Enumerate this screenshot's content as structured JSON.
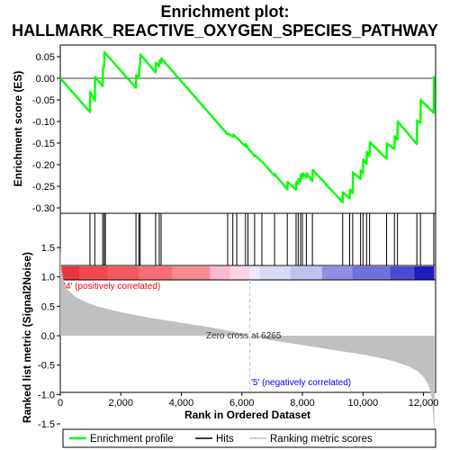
{
  "chart_data": {
    "type": "line",
    "title_line1": "Enrichment plot:",
    "title_line2": "HALLMARK_REACTIVE_OXYGEN_SPECIES_PATHWAY",
    "es_ylabel": "Enrichment score (ES)",
    "metric_ylabel": "Ranked list metric (Signal2Noise)",
    "xlabel": "Rank in Ordered Dataset",
    "xlim": [
      0,
      12400
    ],
    "x_ticks": [
      0,
      2000,
      4000,
      6000,
      8000,
      10000,
      12000
    ],
    "x_tick_labels": [
      "0",
      "2,000",
      "4,000",
      "6,000",
      "8,000",
      "10,000",
      "12,000"
    ],
    "es_ylim": [
      -0.3,
      0.07
    ],
    "es_ticks": [
      0.05,
      0.0,
      -0.05,
      -0.1,
      -0.15,
      -0.2,
      -0.25,
      -0.3
    ],
    "es_tick_labels": [
      "0.05",
      "0.00",
      "-0.05",
      "-0.10",
      "-0.15",
      "-0.20",
      "-0.25",
      "-0.30"
    ],
    "metric_ylim": [
      -1.75,
      1.75
    ],
    "metric_ticks": [
      1.5,
      1.0,
      0.5,
      0.0,
      -0.5,
      -1.0,
      -1.5
    ],
    "metric_tick_labels": [
      "1.5",
      "1.0",
      "0.5",
      "0.0",
      "-0.5",
      "-1.0",
      "-1.5"
    ],
    "series": [
      {
        "name": "Enrichment profile",
        "color": "#00ff00",
        "x": [
          0,
          980,
          990,
          1140,
          1150,
          1400,
          1410,
          1450,
          1460,
          1490,
          2500,
          2510,
          2600,
          2610,
          2640,
          2650,
          3150,
          3160,
          3270,
          3280,
          3330,
          3340,
          5530,
          5540,
          5700,
          5710,
          5830,
          5840,
          6120,
          6130,
          6200,
          6210,
          6420,
          6430,
          6660,
          6670,
          7080,
          7090,
          7500,
          7510,
          7790,
          7800,
          7860,
          7870,
          7940,
          7950,
          8000,
          8010,
          8130,
          8140,
          8330,
          8340,
          9330,
          9340,
          9560,
          9570,
          9660,
          9670,
          9920,
          9930,
          10000,
          10010,
          10120,
          10130,
          10220,
          10230,
          10780,
          10790,
          11040,
          11050,
          11140,
          11150,
          11780,
          11790,
          11900,
          11910,
          12340,
          12350,
          12360
        ],
        "y": [
          0.0,
          -0.078,
          -0.031,
          -0.052,
          0.003,
          -0.018,
          0.022,
          0.028,
          0.06,
          0.058,
          -0.022,
          0.008,
          0.001,
          0.024,
          0.031,
          0.055,
          0.014,
          0.036,
          0.027,
          0.041,
          0.036,
          0.046,
          -0.13,
          -0.128,
          -0.135,
          -0.13,
          -0.138,
          -0.138,
          -0.158,
          -0.152,
          -0.162,
          -0.163,
          -0.18,
          -0.178,
          -0.193,
          -0.193,
          -0.226,
          -0.222,
          -0.257,
          -0.24,
          -0.258,
          -0.24,
          -0.245,
          -0.233,
          -0.238,
          -0.223,
          -0.23,
          -0.22,
          -0.23,
          -0.22,
          -0.238,
          -0.212,
          -0.287,
          -0.264,
          -0.278,
          -0.258,
          -0.266,
          -0.218,
          -0.233,
          -0.213,
          -0.22,
          -0.188,
          -0.198,
          -0.17,
          -0.18,
          -0.148,
          -0.186,
          -0.151,
          -0.164,
          -0.134,
          -0.142,
          -0.1,
          -0.152,
          -0.098,
          -0.103,
          -0.05,
          -0.08,
          0.003,
          0.003
        ]
      },
      {
        "name": "Hits",
        "color": "#000000",
        "positions": [
          980,
          1140,
          1400,
          1450,
          1490,
          2500,
          2600,
          2640,
          3150,
          3270,
          3330,
          5530,
          5700,
          5830,
          6120,
          6200,
          6420,
          6660,
          7080,
          7500,
          7790,
          7860,
          7940,
          8000,
          8130,
          8330,
          9330,
          9560,
          9660,
          9920,
          10000,
          10120,
          10220,
          10780,
          11040,
          11140,
          11780,
          11900,
          12340
        ]
      },
      {
        "name": "Ranking metric scores",
        "color": "#c0c0c0",
        "x": [
          0,
          30,
          100,
          250,
          500,
          800,
          1200,
          2000,
          3000,
          4000,
          5000,
          6000,
          6265,
          7000,
          8000,
          9000,
          10000,
          10500,
          11000,
          11500,
          11800,
          12000,
          12150,
          12250,
          12300,
          12340,
          12360
        ],
        "y": [
          1.5,
          1.18,
          0.95,
          0.78,
          0.66,
          0.58,
          0.5,
          0.4,
          0.3,
          0.22,
          0.14,
          0.04,
          0.0,
          -0.08,
          -0.16,
          -0.24,
          -0.32,
          -0.37,
          -0.43,
          -0.52,
          -0.6,
          -0.7,
          -0.82,
          -0.98,
          -1.2,
          -1.5,
          -1.62
        ]
      }
    ],
    "annotations": {
      "pos_label": "'4' (positively correlated)",
      "neg_label": "'5' (negatively correlated)",
      "zero_cross": "Zero cross at 6265",
      "zero_cross_x": 6265
    },
    "legend": [
      "Enrichment profile",
      "Hits",
      "Ranking metric scores"
    ],
    "colors": {
      "es_line": "#00ff00",
      "pos_label": "#ff0000",
      "neg_label": "#0000ff",
      "metric_fill": "#c0c0c0",
      "zero_line": "#c0c0c0"
    },
    "band": [
      {
        "from": 0,
        "to": 650,
        "color": "#e9363a"
      },
      {
        "from": 650,
        "to": 1600,
        "color": "#f04a4f"
      },
      {
        "from": 1600,
        "to": 2600,
        "color": "#f35a60"
      },
      {
        "from": 2600,
        "to": 3700,
        "color": "#f77077"
      },
      {
        "from": 3700,
        "to": 4950,
        "color": "#f98a90"
      },
      {
        "from": 4950,
        "to": 5600,
        "color": "#fbb9cf"
      },
      {
        "from": 5600,
        "to": 6265,
        "color": "#fbd5e4"
      },
      {
        "from": 6265,
        "to": 6600,
        "color": "#eaeafa"
      },
      {
        "from": 6600,
        "to": 7600,
        "color": "#d8d8f7"
      },
      {
        "from": 7600,
        "to": 8650,
        "color": "#c1c1f3"
      },
      {
        "from": 8650,
        "to": 9650,
        "color": "#8f8fe6"
      },
      {
        "from": 9650,
        "to": 10900,
        "color": "#6f6fdd"
      },
      {
        "from": 10900,
        "to": 11700,
        "color": "#4c4cd2"
      },
      {
        "from": 11700,
        "to": 12360,
        "color": "#1d1dbd"
      }
    ]
  }
}
